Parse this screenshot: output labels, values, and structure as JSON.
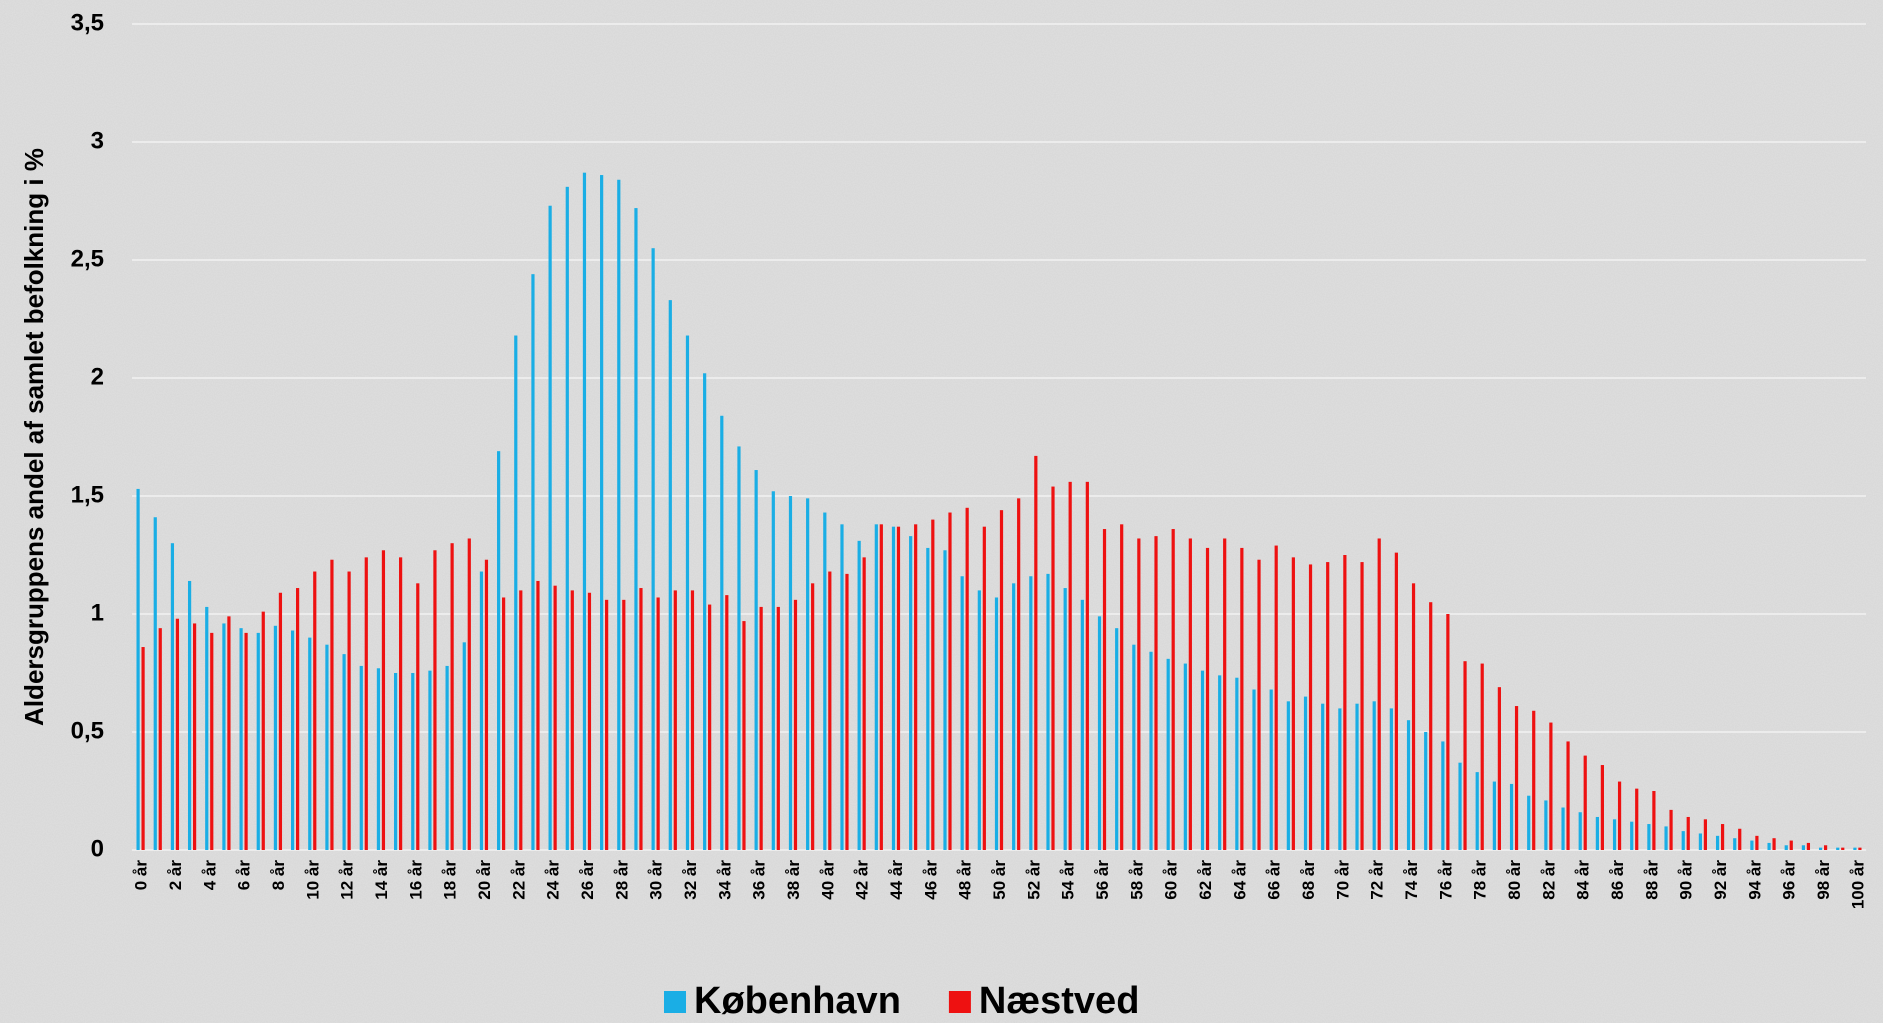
{
  "chart_data": {
    "type": "bar",
    "y_label": "Aldersgruppens andel af samlet befolkning i %",
    "categories": [
      "0 år",
      null,
      "2 år",
      null,
      "4 år",
      null,
      "6 år",
      null,
      "8 år",
      null,
      "10 år",
      null,
      "12 år",
      null,
      "14 år",
      null,
      "16 år",
      null,
      "18 år",
      null,
      "20 år",
      null,
      "22 år",
      null,
      "24 år",
      null,
      "26 år",
      null,
      "28 år",
      null,
      "30 år",
      null,
      "32 år",
      null,
      "34 år",
      null,
      "36 år",
      null,
      "38 år",
      null,
      "40 år",
      null,
      "42 år",
      null,
      "44 år",
      null,
      "46 år",
      null,
      "48 år",
      null,
      "50 år",
      null,
      "52 år",
      null,
      "54 år",
      null,
      "56 år",
      null,
      "58 år",
      null,
      "60 år",
      null,
      "62 år",
      null,
      "64 år",
      null,
      "66 år",
      null,
      "68 år",
      null,
      "70 år",
      null,
      "72 år",
      null,
      "74 år",
      null,
      "76 år",
      null,
      "78 år",
      null,
      "80 år",
      null,
      "82 år",
      null,
      "84 år",
      null,
      "86 år",
      null,
      "88 år",
      null,
      "90 år",
      null,
      "92 år",
      null,
      "94 år",
      null,
      "96 år",
      null,
      "98 år",
      null,
      "100 år"
    ],
    "series": [
      {
        "name": "København",
        "color": "#1aaee5",
        "values": [
          1.53,
          1.41,
          1.3,
          1.14,
          1.03,
          0.96,
          0.94,
          0.92,
          0.95,
          0.93,
          0.9,
          0.87,
          0.83,
          0.78,
          0.77,
          0.75,
          0.75,
          0.76,
          0.78,
          0.88,
          1.18,
          1.69,
          2.18,
          2.44,
          2.73,
          2.81,
          2.87,
          2.86,
          2.84,
          2.72,
          2.55,
          2.33,
          2.18,
          2.02,
          1.84,
          1.71,
          1.61,
          1.52,
          1.5,
          1.49,
          1.43,
          1.38,
          1.31,
          1.38,
          1.37,
          1.33,
          1.28,
          1.27,
          1.16,
          1.1,
          1.07,
          1.13,
          1.16,
          1.17,
          1.11,
          1.06,
          0.99,
          0.94,
          0.87,
          0.84,
          0.81,
          0.79,
          0.76,
          0.74,
          0.73,
          0.68,
          0.68,
          0.63,
          0.65,
          0.62,
          0.6,
          0.62,
          0.63,
          0.6,
          0.55,
          0.5,
          0.46,
          0.37,
          0.33,
          0.29,
          0.28,
          0.23,
          0.21,
          0.18,
          0.16,
          0.14,
          0.13,
          0.12,
          0.11,
          0.1,
          0.08,
          0.07,
          0.06,
          0.05,
          0.04,
          0.03,
          0.02,
          0.02,
          0.01,
          0.01,
          0.01
        ]
      },
      {
        "name": "Næstved",
        "color": "#ee1111",
        "values": [
          0.86,
          0.94,
          0.98,
          0.96,
          0.92,
          0.99,
          0.92,
          1.01,
          1.09,
          1.11,
          1.18,
          1.23,
          1.18,
          1.24,
          1.27,
          1.24,
          1.13,
          1.27,
          1.3,
          1.32,
          1.23,
          1.07,
          1.1,
          1.14,
          1.12,
          1.1,
          1.09,
          1.06,
          1.06,
          1.11,
          1.07,
          1.1,
          1.1,
          1.04,
          1.08,
          0.97,
          1.03,
          1.03,
          1.06,
          1.13,
          1.18,
          1.17,
          1.24,
          1.38,
          1.37,
          1.38,
          1.4,
          1.43,
          1.45,
          1.37,
          1.44,
          1.49,
          1.67,
          1.54,
          1.56,
          1.56,
          1.36,
          1.38,
          1.32,
          1.33,
          1.36,
          1.32,
          1.28,
          1.32,
          1.28,
          1.23,
          1.29,
          1.24,
          1.21,
          1.22,
          1.25,
          1.22,
          1.32,
          1.26,
          1.13,
          1.05,
          1.0,
          0.8,
          0.79,
          0.69,
          0.61,
          0.59,
          0.54,
          0.46,
          0.4,
          0.36,
          0.29,
          0.26,
          0.25,
          0.17,
          0.14,
          0.13,
          0.11,
          0.09,
          0.06,
          0.05,
          0.04,
          0.03,
          0.02,
          0.01,
          0.01
        ]
      }
    ],
    "ylim": [
      0,
      3.5
    ],
    "yticks": [
      0,
      {
        "value": 0.5,
        "label": "0,5"
      },
      1,
      {
        "value": 1.5,
        "label": "1,5"
      },
      2,
      {
        "value": 2.5,
        "label": "2,5"
      },
      3,
      {
        "value": 3.5,
        "label": "3,5"
      }
    ],
    "grid": true,
    "legend": "bottom"
  }
}
